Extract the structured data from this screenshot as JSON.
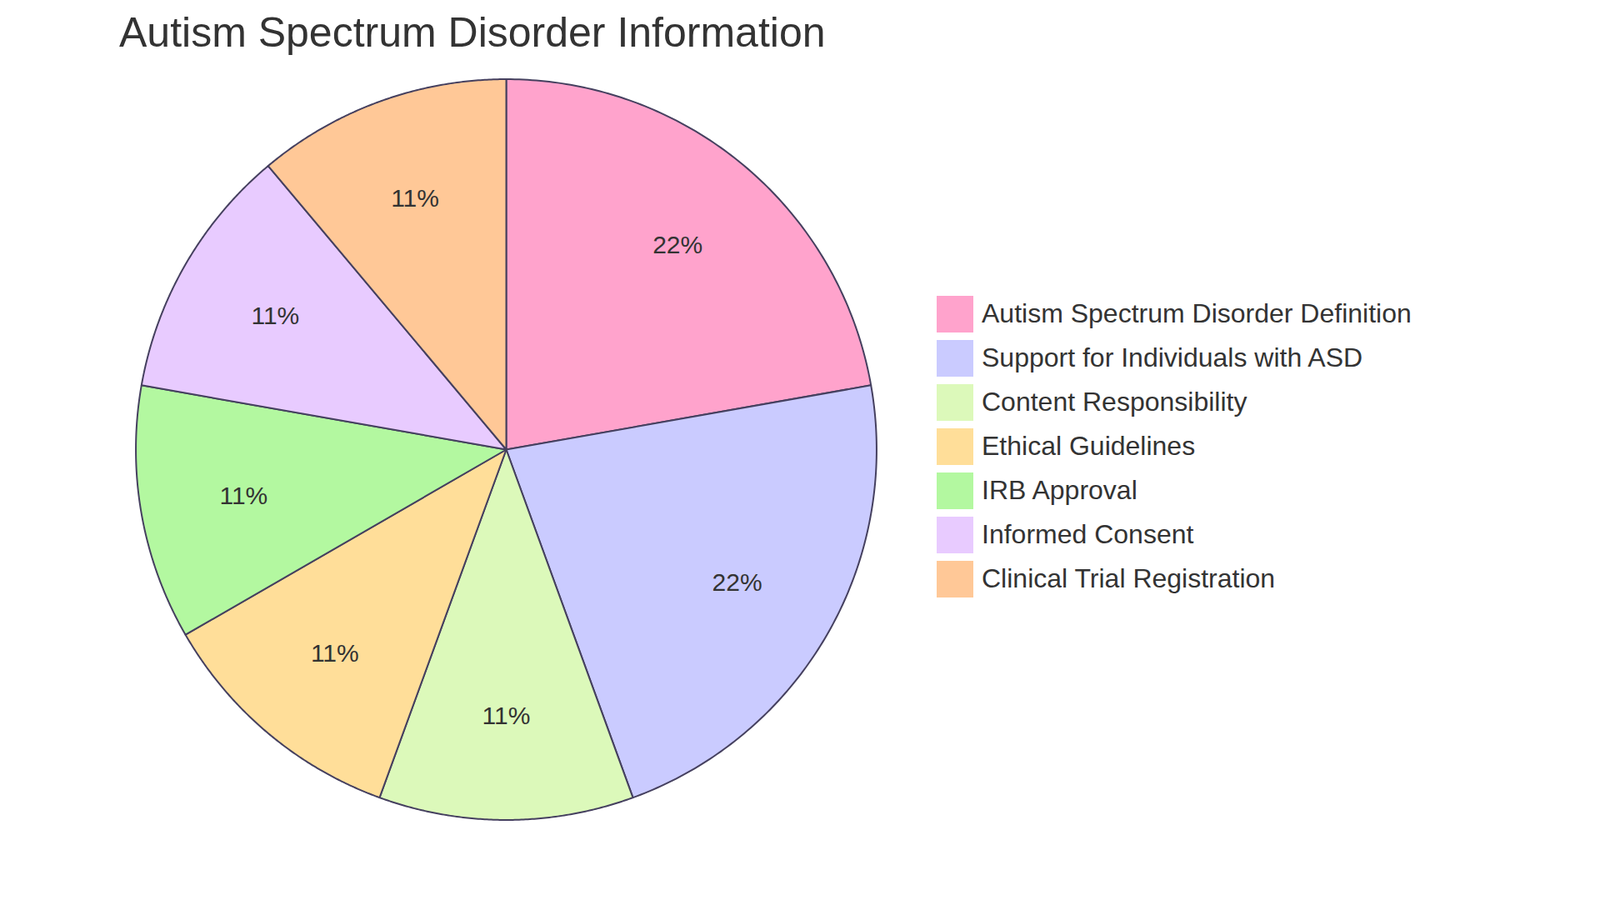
{
  "chart_data": {
    "type": "pie",
    "title": "Autism Spectrum Disorder Information",
    "categories": [
      "Autism Spectrum Disorder Definition",
      "Support for Individuals with ASD",
      "Content Responsibility",
      "Ethical Guidelines",
      "IRB Approval",
      "Informed Consent",
      "Clinical Trial Registration"
    ],
    "values": [
      22,
      22,
      11,
      11,
      11,
      11,
      11
    ],
    "value_labels": [
      "22%",
      "22%",
      "11%",
      "11%",
      "11%",
      "11%",
      "11%"
    ],
    "colors": [
      "#ffa3cc",
      "#cacbff",
      "#dcf9ba",
      "#ffde99",
      "#b3f8a0",
      "#e8cbff",
      "#ffc897"
    ],
    "data_labels": true,
    "legend": "right"
  }
}
